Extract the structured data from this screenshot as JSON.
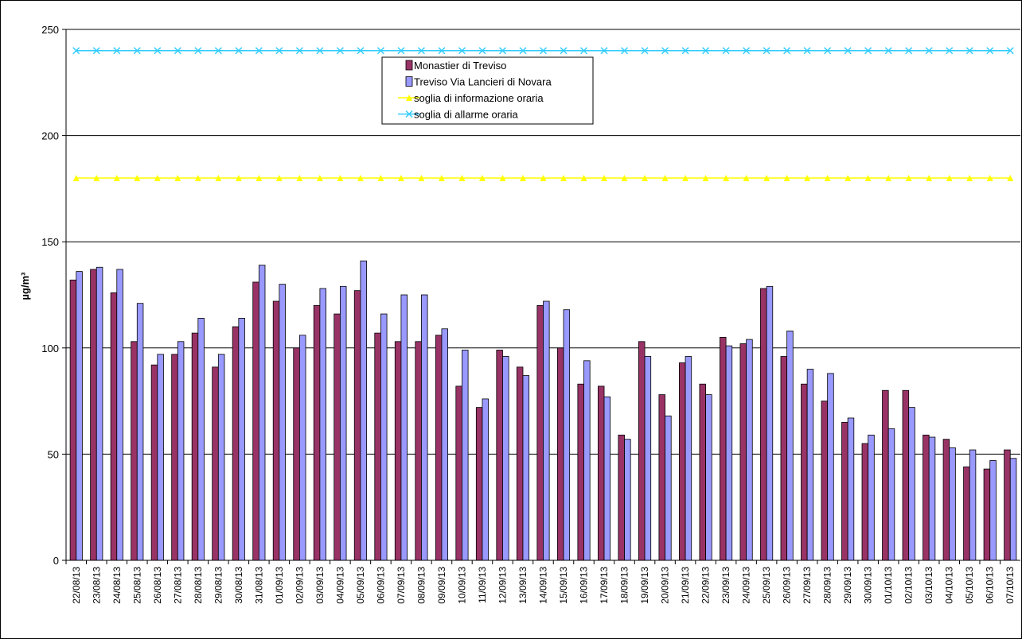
{
  "chart_data": {
    "type": "bar",
    "ylabel": "µg/m³",
    "categories": [
      "22/08/13",
      "23/08/13",
      "24/08/13",
      "25/08/13",
      "26/08/13",
      "27/08/13",
      "28/08/13",
      "29/08/13",
      "30/08/13",
      "31/08/13",
      "01/09/13",
      "02/09/13",
      "03/09/13",
      "04/09/13",
      "05/09/13",
      "06/09/13",
      "07/09/13",
      "08/09/13",
      "09/09/13",
      "10/09/13",
      "11/09/13",
      "12/09/13",
      "13/09/13",
      "14/09/13",
      "15/09/13",
      "16/09/13",
      "17/09/13",
      "18/09/13",
      "19/09/13",
      "20/09/13",
      "21/09/13",
      "22/09/13",
      "23/09/13",
      "24/09/13",
      "25/09/13",
      "26/09/13",
      "27/09/13",
      "28/09/13",
      "29/09/13",
      "30/09/13",
      "01/10/13",
      "02/10/13",
      "03/10/13",
      "04/10/13",
      "05/10/13",
      "06/10/13",
      "07/10/13"
    ],
    "series": [
      {
        "name": "Monastier di Treviso",
        "type": "bar",
        "color": "#993366",
        "values": [
          132,
          137,
          126,
          103,
          92,
          97,
          107,
          91,
          110,
          131,
          122,
          100,
          120,
          116,
          127,
          107,
          103,
          103,
          106,
          82,
          72,
          99,
          91,
          120,
          100,
          83,
          82,
          59,
          103,
          78,
          93,
          83,
          105,
          102,
          128,
          96,
          83,
          75,
          65,
          55,
          80,
          80,
          59,
          57,
          44,
          43,
          52
        ]
      },
      {
        "name": "Treviso Via Lancieri di Novara",
        "type": "bar",
        "color": "#9999ff",
        "values": [
          136,
          138,
          137,
          121,
          97,
          103,
          114,
          97,
          114,
          139,
          130,
          106,
          128,
          129,
          141,
          116,
          125,
          125,
          109,
          99,
          76,
          96,
          87,
          122,
          118,
          94,
          77,
          57,
          96,
          68,
          96,
          78,
          101,
          104,
          129,
          108,
          90,
          88,
          67,
          59,
          62,
          72,
          58,
          53,
          52,
          47,
          48
        ]
      },
      {
        "name": "soglia di informazione oraria",
        "type": "line",
        "marker": "triangle",
        "color": "#ffff00",
        "values": [
          180,
          180,
          180,
          180,
          180,
          180,
          180,
          180,
          180,
          180,
          180,
          180,
          180,
          180,
          180,
          180,
          180,
          180,
          180,
          180,
          180,
          180,
          180,
          180,
          180,
          180,
          180,
          180,
          180,
          180,
          180,
          180,
          180,
          180,
          180,
          180,
          180,
          180,
          180,
          180,
          180,
          180,
          180,
          180,
          180,
          180,
          180
        ]
      },
      {
        "name": "soglia di allarme oraria",
        "type": "line",
        "marker": "x",
        "color": "#33ccff",
        "values": [
          240,
          240,
          240,
          240,
          240,
          240,
          240,
          240,
          240,
          240,
          240,
          240,
          240,
          240,
          240,
          240,
          240,
          240,
          240,
          240,
          240,
          240,
          240,
          240,
          240,
          240,
          240,
          240,
          240,
          240,
          240,
          240,
          240,
          240,
          240,
          240,
          240,
          240,
          240,
          240,
          240,
          240,
          240,
          240,
          240,
          240,
          240
        ]
      }
    ],
    "ylim": [
      0,
      250
    ],
    "yticks": [
      0,
      50,
      100,
      150,
      200,
      250
    ],
    "grid": true
  }
}
